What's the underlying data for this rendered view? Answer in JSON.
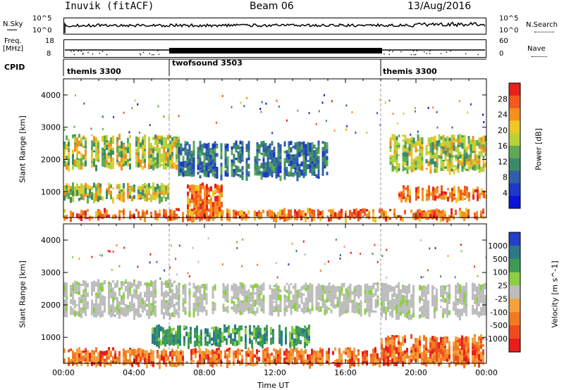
{
  "header": {
    "station": "Inuvik (fitACF)",
    "beam": "Beam 06",
    "date": "13/Aug/2016"
  },
  "nsky": {
    "label": "N.Sky",
    "ticks": [
      "10^5",
      "10^0"
    ],
    "right_label": "N.Search",
    "right_ticks": [
      "10^5",
      "10^0"
    ]
  },
  "freq": {
    "label_line1": "Freq.",
    "label_line2": "[MHz]",
    "ticks": [
      "18",
      "8"
    ],
    "right_label": "Nave",
    "right_ticks": [
      "60",
      "0"
    ]
  },
  "cpid": {
    "label": "CPID",
    "segments": [
      {
        "name": "themis 3300",
        "start": 0,
        "end": 6
      },
      {
        "name": "twofsound 3503",
        "start": 6,
        "end": 18
      },
      {
        "name": "themis 3300",
        "start": 18,
        "end": 24
      }
    ]
  },
  "time_axis": {
    "title": "Time UT",
    "labels": [
      "00:00",
      "04:00",
      "08:00",
      "12:00",
      "16:00",
      "20:00",
      "00:00"
    ]
  },
  "colors": {
    "scatter_grey": "#b4b4b4"
  },
  "chart_data": [
    {
      "type": "heatmap",
      "name": "Power",
      "ylabel": "Slant Range [km]",
      "xlabel": "Time UT",
      "xlim": [
        0,
        24
      ],
      "ylim": [
        200,
        4500
      ],
      "yticks": [
        1000,
        2000,
        3000,
        4000
      ],
      "colorbar": {
        "label": "Power [dB]",
        "ticks": [
          "28",
          "24",
          "20",
          "16",
          "12",
          "8",
          "4"
        ],
        "colors": [
          "#e8211b",
          "#f25a20",
          "#f5901f",
          "#eec727",
          "#b9d23a",
          "#5faa55",
          "#3b8b68",
          "#2f5fa8",
          "#1e38c8",
          "#0a14d9"
        ]
      },
      "echo_bands": [
        {
          "t0": 0.0,
          "t1": 24.0,
          "r0": 200,
          "r1": 500,
          "level": "high"
        },
        {
          "t0": 0.0,
          "t1": 6.0,
          "r0": 800,
          "r1": 1300,
          "level": "medium"
        },
        {
          "t0": 0.0,
          "t1": 6.5,
          "r0": 1800,
          "r1": 2800,
          "level": "medium"
        },
        {
          "t0": 6.5,
          "t1": 15.0,
          "r0": 1500,
          "r1": 2600,
          "level": "low"
        },
        {
          "t0": 7.0,
          "t1": 9.0,
          "r0": 200,
          "r1": 1300,
          "level": "high"
        },
        {
          "t0": 18.5,
          "t1": 24.0,
          "r0": 1700,
          "r1": 2800,
          "level": "medium"
        },
        {
          "t0": 19.0,
          "t1": 24.0,
          "r0": 800,
          "r1": 1200,
          "level": "high"
        }
      ]
    },
    {
      "type": "heatmap",
      "name": "Velocity",
      "ylabel": "Slant Range [km]",
      "xlabel": "Time UT",
      "xlim": [
        0,
        24
      ],
      "ylim": [
        200,
        4500
      ],
      "yticks": [
        1000,
        2000,
        3000,
        4000
      ],
      "colorbar": {
        "label": "Velocity [m s^-1]",
        "ticks": [
          "1000",
          "500",
          "100",
          "25",
          "-25",
          "-100",
          "-500",
          "-1000"
        ],
        "colors": [
          "#2340c8",
          "#2a7a86",
          "#3c9a55",
          "#8ccf44",
          "#bdbdbd",
          "#f4a23d",
          "#f27b22",
          "#ee4b1f",
          "#e81e1b"
        ]
      },
      "echo_bands": [
        {
          "t0": 0.0,
          "t1": 24.0,
          "r0": 200,
          "r1": 700,
          "level": "negative"
        },
        {
          "t0": 0.0,
          "t1": 6.5,
          "r0": 1700,
          "r1": 2800,
          "level": "zero"
        },
        {
          "t0": 6.5,
          "t1": 18.0,
          "r0": 1800,
          "r1": 2700,
          "level": "zero"
        },
        {
          "t0": 5.0,
          "t1": 14.0,
          "r0": 800,
          "r1": 1400,
          "level": "positive"
        },
        {
          "t0": 18.0,
          "t1": 24.0,
          "r0": 1700,
          "r1": 2700,
          "level": "zero"
        },
        {
          "t0": 18.0,
          "t1": 24.0,
          "r0": 300,
          "r1": 1100,
          "level": "negative"
        }
      ]
    }
  ]
}
